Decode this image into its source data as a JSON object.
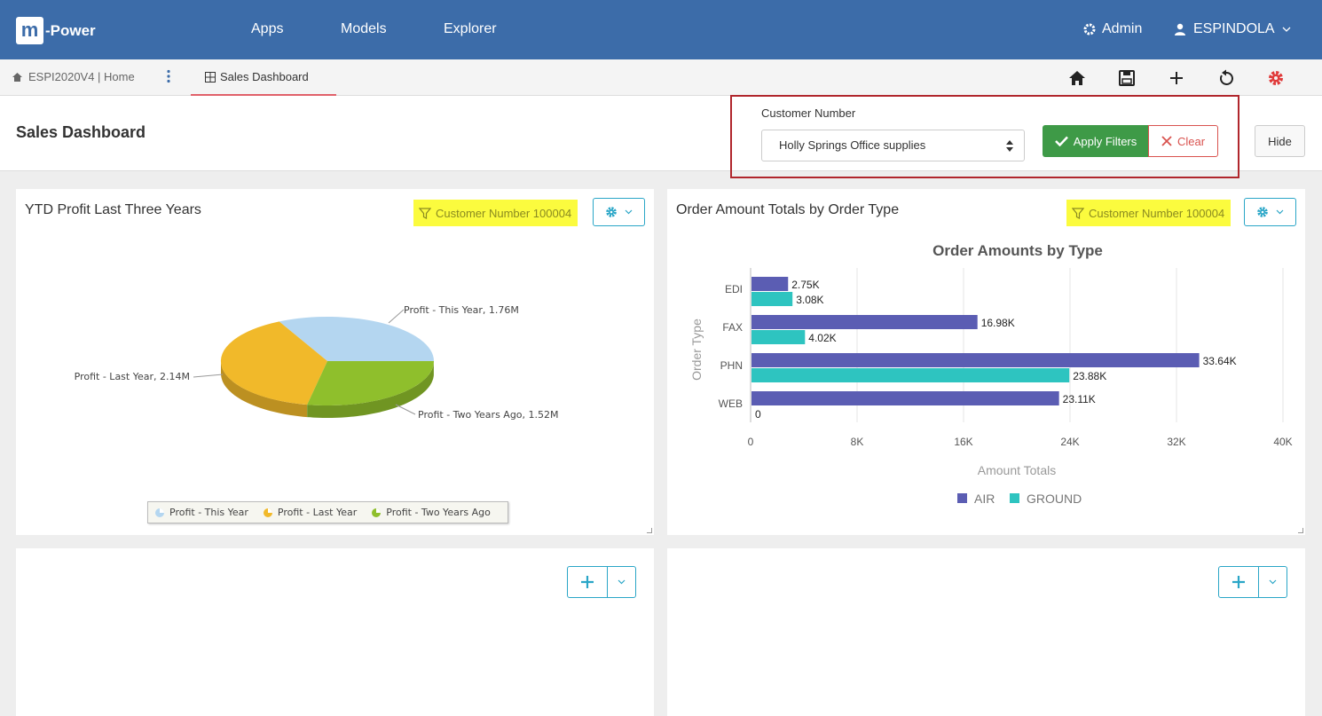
{
  "nav": {
    "logo_mark": "m",
    "logo_text": "-Power",
    "links": [
      "Apps",
      "Models",
      "Explorer"
    ],
    "admin_label": "Admin",
    "user_name": "ESPINDOLA"
  },
  "tabs": {
    "home_crumb": "ESPI2020V4 | Home",
    "active_tab": "Sales Dashboard"
  },
  "header": {
    "page_title": "Sales Dashboard",
    "filter_label": "Customer Number",
    "filter_value": "Holly Springs Office supplies",
    "apply_label": "Apply Filters",
    "clear_label": "Clear",
    "hide_label": "Hide"
  },
  "panels": {
    "left": {
      "title": "YTD Profit Last Three Years",
      "filter_tag": "Customer Number 100004"
    },
    "right": {
      "title": "Order Amount Totals by Order Type",
      "filter_tag": "Customer Number 100004"
    }
  },
  "chart_data": [
    {
      "type": "pie",
      "title": "",
      "slices": [
        {
          "label": "Profit - This Year",
          "value": 1.76,
          "display": "Profit - This Year, 1.76M",
          "color": "#b4d6f0"
        },
        {
          "label": "Profit - Last Year",
          "value": 2.14,
          "display": "Profit - Last Year, 2.14M",
          "color": "#f1b92a"
        },
        {
          "label": "Profit - Two Years Ago",
          "value": 1.52,
          "display": "Profit - Two Years Ago, 1.52M",
          "color": "#8fbf2c"
        }
      ],
      "legend": [
        "Profit - This Year",
        "Profit - Last Year",
        "Profit - Two Years Ago"
      ],
      "legend_position": "bottom"
    },
    {
      "type": "bar",
      "orientation": "horizontal",
      "title": "Order Amounts by Type",
      "xlabel": "Amount Totals",
      "ylabel": "Order Type",
      "categories": [
        "EDI",
        "FAX",
        "PHN",
        "WEB"
      ],
      "series": [
        {
          "name": "AIR",
          "color": "#5b5db3",
          "values": [
            2.75,
            16.98,
            33.64,
            23.11
          ],
          "labels": [
            "2.75K",
            "16.98K",
            "33.64K",
            "23.11K"
          ]
        },
        {
          "name": "GROUND",
          "color": "#2ec4c0",
          "values": [
            3.08,
            4.02,
            23.88,
            0
          ],
          "labels": [
            "3.08K",
            "4.02K",
            "23.88K",
            "0"
          ]
        }
      ],
      "xlim": [
        0,
        40
      ],
      "xticks": [
        "0",
        "8K",
        "16K",
        "24K",
        "32K",
        "40K"
      ],
      "grid": true,
      "legend_position": "bottom"
    }
  ]
}
